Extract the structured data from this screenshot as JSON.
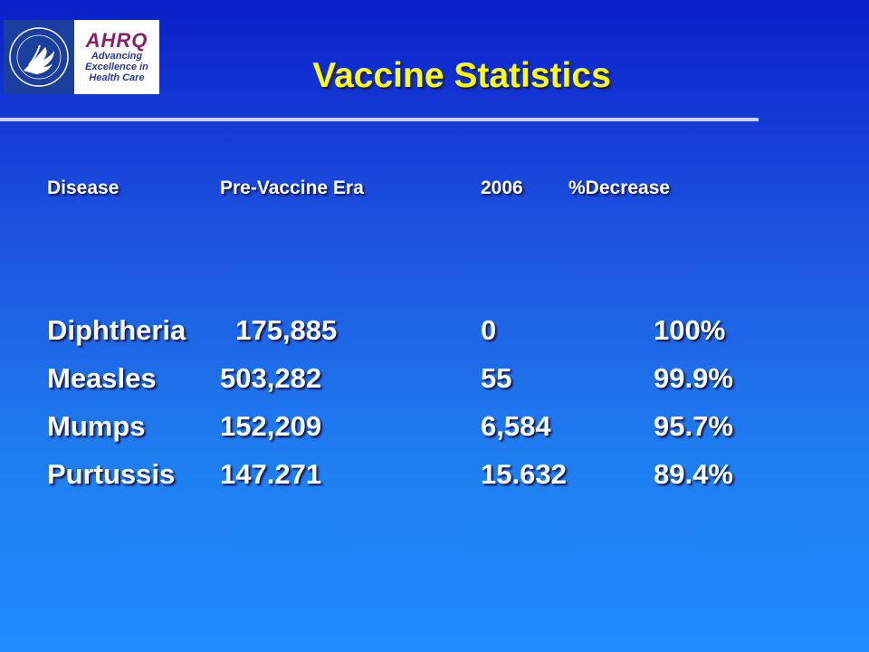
{
  "slide": {
    "title": "Vaccine Statistics",
    "logos": {
      "hhs_icon": "hhs-eagle-seal-icon",
      "ahrq_mark": "AHRQ",
      "ahrq_tagline": [
        "Advancing",
        "Excellence in",
        "Health Care"
      ]
    },
    "colors": {
      "title": "#ffff00",
      "text": "#ffffff",
      "rule": "#c8d4ff"
    }
  },
  "table": {
    "headers": [
      "Disease",
      "Pre-Vaccine Era",
      "2006",
      "%Decrease"
    ],
    "rows": [
      {
        "disease": "Diphtheria",
        "pre": "  175,885",
        "y2006": "0",
        "decrease": "100%"
      },
      {
        "disease": "Measles",
        "pre": "503,282",
        "y2006": "55",
        "decrease": "99.9%"
      },
      {
        "disease": "Mumps",
        "pre": "152,209",
        "y2006": "6,584",
        "decrease": "95.7%"
      },
      {
        "disease": "Purtussis",
        "pre": "147.271",
        "y2006": "15.632",
        "decrease": "89.4%"
      }
    ]
  }
}
